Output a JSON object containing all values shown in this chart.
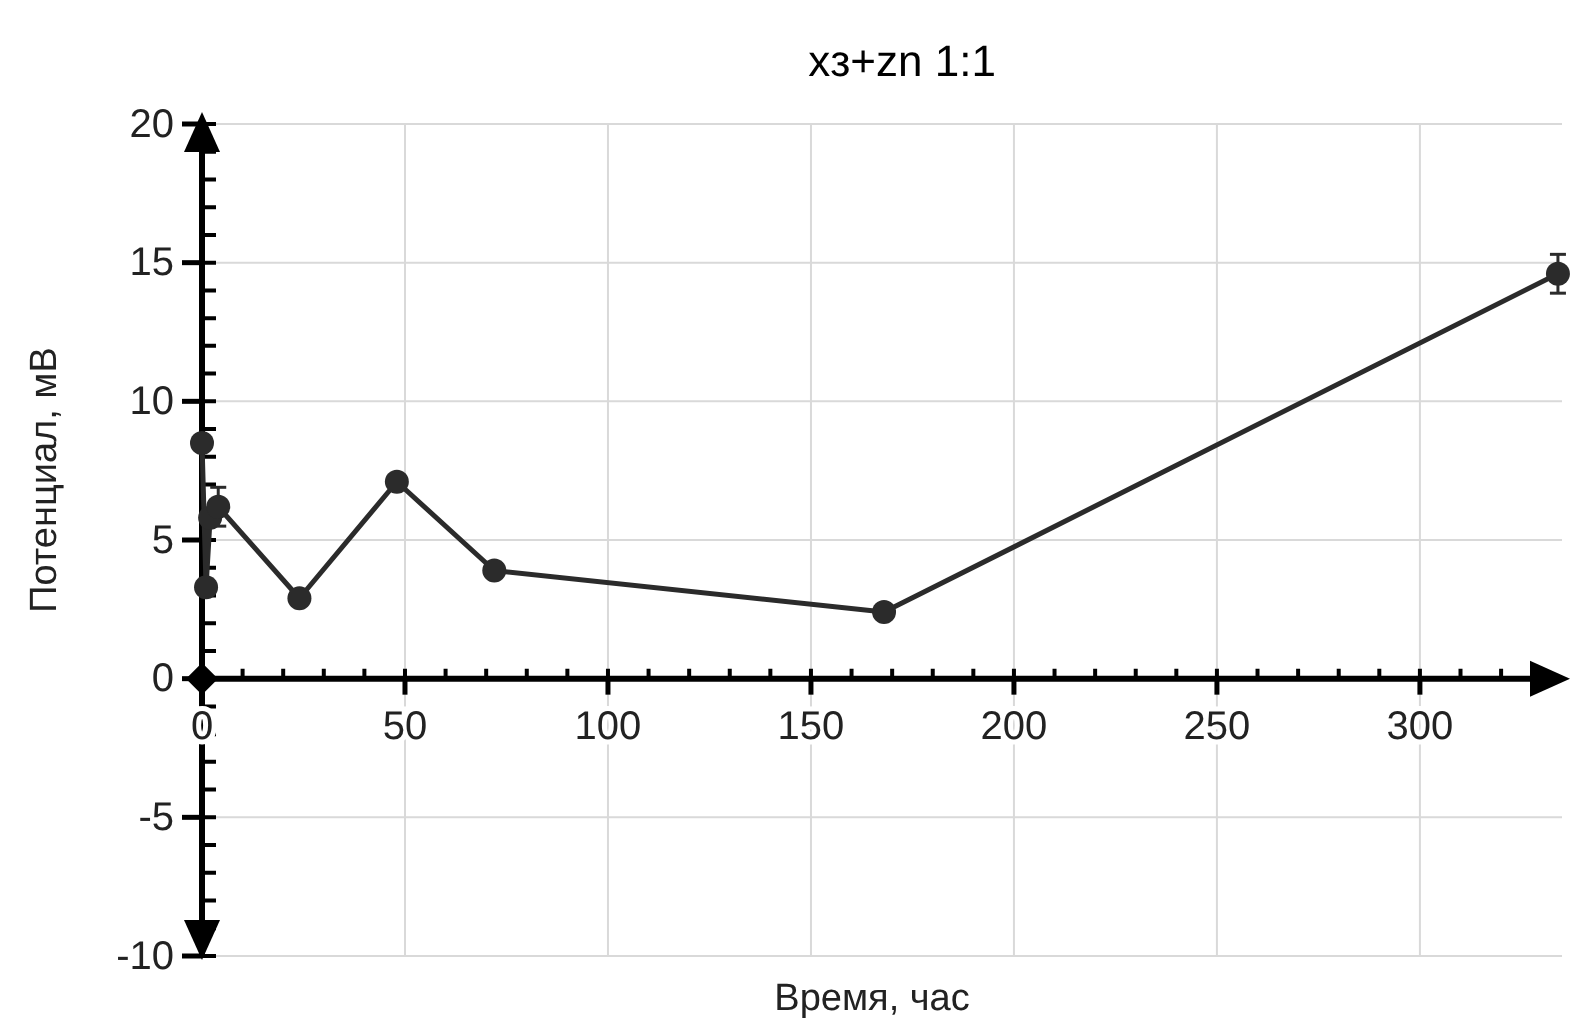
{
  "chart_data": {
    "type": "line",
    "title": "xз+zn 1:1",
    "xlabel": "Время, час",
    "ylabel": "Потенциал, мВ",
    "x": [
      0,
      1,
      2,
      4,
      24,
      48,
      72,
      168,
      334
    ],
    "series": [
      {
        "color": "#2b2b2b",
        "values": [
          8.5,
          3.3,
          5.8,
          6.2,
          2.9,
          7.1,
          3.9,
          2.4,
          14.6
        ],
        "errors": [
          null,
          null,
          null,
          0.7,
          null,
          null,
          null,
          null,
          0.7
        ]
      }
    ],
    "xlim": [
      0,
      335
    ],
    "xticks": [
      0,
      50,
      100,
      150,
      200,
      250,
      300
    ],
    "ylim": [
      -10,
      20
    ],
    "yticks": [
      -10,
      -5,
      0,
      5,
      10,
      15,
      20
    ],
    "grid": true,
    "marker": "circle",
    "line_style": "solid"
  }
}
